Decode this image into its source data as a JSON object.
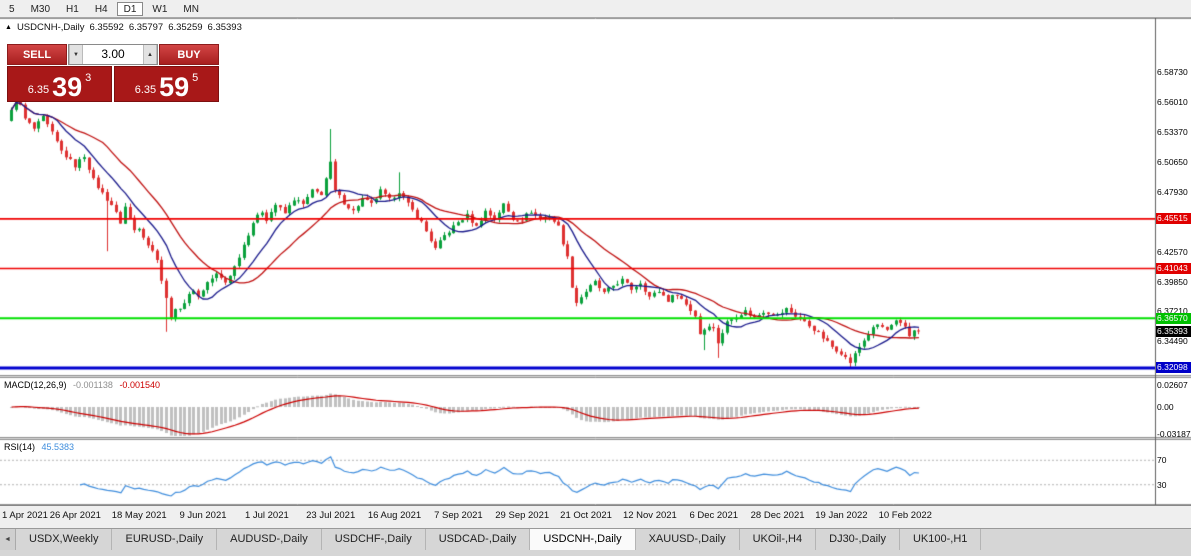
{
  "toolbar": {
    "timeframes": [
      "5",
      "M30",
      "H1",
      "H4",
      "D1",
      "W1",
      "MN"
    ],
    "active": "D1"
  },
  "chart_header": {
    "collapse_icon": "▲",
    "symbol": "USDCNH-,Daily",
    "open": "6.35592",
    "high": "6.35797",
    "low": "6.35259",
    "close": "6.35393"
  },
  "trade": {
    "sell_label": "SELL",
    "buy_label": "BUY",
    "volume": "3.00",
    "spinner_down": "▼",
    "spinner_up": "▲",
    "sell_price": {
      "prefix": "6.35",
      "big": "39",
      "sup": "3"
    },
    "buy_price": {
      "prefix": "6.35",
      "big": "59",
      "sup": "5"
    }
  },
  "macd_label": {
    "name": "MACD(12,26,9)",
    "main": "-0.001138",
    "signal": "-0.001540"
  },
  "rsi_label": {
    "name": "RSI(14)",
    "value": "45.5383"
  },
  "tabs": {
    "scroll_left_icon": "◄",
    "items": [
      "USDX,Weekly",
      "EURUSD-,Daily",
      "AUDUSD-,Daily",
      "USDCHF-,Daily",
      "USDCAD-,Daily",
      "USDCNH-,Daily",
      "XAUUSD-,Daily",
      "UKOil-,H4",
      "DJ30-,Daily",
      "UK100-,H1"
    ],
    "active": "USDCNH-,Daily"
  },
  "chart_data": {
    "type": "candlestick",
    "title": "USDCNH-,Daily",
    "n": 200,
    "last_close": 6.35393,
    "candle_up": "#0aa13c",
    "candle_down": "#de3131",
    "x_axis": {
      "labels": [
        "1 Apr 2021",
        "26 Apr 2021",
        "18 May 2021",
        "9 Jun 2021",
        "1 Jul 2021",
        "23 Jul 2021",
        "16 Aug 2021",
        "7 Sep 2021",
        "29 Sep 2021",
        "21 Oct 2021",
        "12 Nov 2021",
        "6 Dec 2021",
        "28 Dec 2021",
        "19 Jan 2022",
        "10 Feb 2022"
      ],
      "indices": [
        0,
        14,
        28,
        42,
        56,
        70,
        84,
        98,
        112,
        126,
        140,
        154,
        168,
        182,
        196
      ]
    },
    "y_axis": {
      "min": 6.3146,
      "max": 6.6359,
      "plain_labels": [
        {
          "t": "6.58730",
          "p": 6.5873
        },
        {
          "t": "6.56010",
          "p": 6.5601
        },
        {
          "t": "6.53370",
          "p": 6.5337
        },
        {
          "t": "6.50650",
          "p": 6.5065
        },
        {
          "t": "6.47930",
          "p": 6.4793
        },
        {
          "t": "6.42570",
          "p": 6.4257
        },
        {
          "t": "6.39850",
          "p": 6.3985
        },
        {
          "t": "6.37210",
          "p": 6.3721
        },
        {
          "t": "6.34490",
          "p": 6.3449
        }
      ],
      "badges": [
        {
          "t": "6.45515",
          "p": 6.45515,
          "bg": "#e00000"
        },
        {
          "t": "6.41043",
          "p": 6.41043,
          "bg": "#e00000"
        },
        {
          "t": "6.36570",
          "p": 6.3657,
          "bg": "#00c000"
        },
        {
          "t": "6.35393",
          "p": 6.35393,
          "bg": "#000000"
        },
        {
          "t": "6.32098",
          "p": 6.32098,
          "bg": "#0000c8"
        }
      ]
    },
    "levels": [
      {
        "p": 6.45515,
        "color": "#f00000",
        "w": 1.6
      },
      {
        "p": 6.41043,
        "color": "#f00000",
        "w": 1.6
      },
      {
        "p": 6.3657,
        "color": "#00e000",
        "w": 2
      },
      {
        "p": 6.32098,
        "color": "#0000d0",
        "w": 3
      }
    ],
    "mas": [
      {
        "period": 21,
        "color": "#c01010"
      },
      {
        "period": 10,
        "color": "#1a1a8c"
      }
    ],
    "macd": {
      "fast": 12,
      "slow": 26,
      "signal": 9,
      "current_macd": -0.001138,
      "current_signal": -0.00154,
      "hist_color": "#c0c0c0",
      "signal_color": "#cc0000",
      "axis": [
        {
          "t": "0.02607",
          "v": 0.02607
        },
        {
          "t": "0.00",
          "v": 0
        },
        {
          "t": "-0.03187",
          "v": -0.03187
        }
      ]
    },
    "rsi": {
      "period": 14,
      "current": 45.5383,
      "levels": [
        70,
        30
      ],
      "color": "#3e8ddd"
    },
    "close_anchors": [
      [
        0,
        6.552
      ],
      [
        1,
        6.568
      ],
      [
        3,
        6.545
      ],
      [
        5,
        6.536
      ],
      [
        7,
        6.546
      ],
      [
        9,
        6.532
      ],
      [
        11,
        6.516
      ],
      [
        14,
        6.503
      ],
      [
        16,
        6.512
      ],
      [
        18,
        6.49
      ],
      [
        20,
        6.478
      ],
      [
        22,
        6.468
      ],
      [
        24,
        6.452
      ],
      [
        25,
        6.466
      ],
      [
        27,
        6.445
      ],
      [
        28,
        6.448
      ],
      [
        30,
        6.432
      ],
      [
        32,
        6.42
      ],
      [
        33,
        6.4
      ],
      [
        34,
        6.383
      ],
      [
        35,
        6.367
      ],
      [
        36,
        6.372
      ],
      [
        38,
        6.38
      ],
      [
        40,
        6.392
      ],
      [
        41,
        6.385
      ],
      [
        43,
        6.398
      ],
      [
        45,
        6.405
      ],
      [
        47,
        6.398
      ],
      [
        49,
        6.412
      ],
      [
        51,
        6.432
      ],
      [
        53,
        6.452
      ],
      [
        55,
        6.462
      ],
      [
        56,
        6.455
      ],
      [
        58,
        6.468
      ],
      [
        60,
        6.46
      ],
      [
        62,
        6.473
      ],
      [
        64,
        6.468
      ],
      [
        66,
        6.48
      ],
      [
        68,
        6.478
      ],
      [
        70,
        6.505
      ],
      [
        71,
        6.48
      ],
      [
        73,
        6.47
      ],
      [
        75,
        6.462
      ],
      [
        77,
        6.473
      ],
      [
        79,
        6.468
      ],
      [
        81,
        6.48
      ],
      [
        83,
        6.472
      ],
      [
        85,
        6.48
      ],
      [
        87,
        6.468
      ],
      [
        90,
        6.452
      ],
      [
        93,
        6.428
      ],
      [
        95,
        6.44
      ],
      [
        98,
        6.452
      ],
      [
        100,
        6.458
      ],
      [
        102,
        6.448
      ],
      [
        104,
        6.462
      ],
      [
        106,
        6.455
      ],
      [
        108,
        6.468
      ],
      [
        110,
        6.455
      ],
      [
        112,
        6.455
      ],
      [
        114,
        6.462
      ],
      [
        116,
        6.455
      ],
      [
        118,
        6.458
      ],
      [
        120,
        6.448
      ],
      [
        122,
        6.42
      ],
      [
        123,
        6.395
      ],
      [
        124,
        6.38
      ],
      [
        126,
        6.39
      ],
      [
        128,
        6.398
      ],
      [
        130,
        6.388
      ],
      [
        132,
        6.395
      ],
      [
        134,
        6.4
      ],
      [
        136,
        6.392
      ],
      [
        138,
        6.398
      ],
      [
        140,
        6.385
      ],
      [
        142,
        6.39
      ],
      [
        144,
        6.382
      ],
      [
        146,
        6.388
      ],
      [
        148,
        6.378
      ],
      [
        150,
        6.368
      ],
      [
        151,
        6.352
      ],
      [
        153,
        6.36
      ],
      [
        154,
        6.356
      ],
      [
        155,
        6.344
      ],
      [
        157,
        6.362
      ],
      [
        159,
        6.368
      ],
      [
        161,
        6.372
      ],
      [
        163,
        6.366
      ],
      [
        165,
        6.372
      ],
      [
        167,
        6.37
      ],
      [
        168,
        6.368
      ],
      [
        170,
        6.374
      ],
      [
        172,
        6.368
      ],
      [
        174,
        6.362
      ],
      [
        176,
        6.356
      ],
      [
        178,
        6.348
      ],
      [
        180,
        6.34
      ],
      [
        182,
        6.335
      ],
      [
        183,
        6.33
      ],
      [
        184,
        6.326
      ],
      [
        186,
        6.34
      ],
      [
        188,
        6.352
      ],
      [
        190,
        6.36
      ],
      [
        192,
        6.355
      ],
      [
        194,
        6.362
      ],
      [
        196,
        6.358
      ],
      [
        197,
        6.35
      ],
      [
        198,
        6.356
      ],
      [
        199,
        6.35393
      ]
    ],
    "wick_overrides": [
      [
        1,
        "high",
        6.5755
      ],
      [
        21,
        "low",
        6.426
      ],
      [
        34,
        "low",
        6.3535
      ],
      [
        70,
        "high",
        6.536
      ],
      [
        85,
        "high",
        6.497
      ],
      [
        152,
        "low",
        6.337
      ],
      [
        155,
        "low",
        6.33
      ],
      [
        184,
        "low",
        6.3215
      ]
    ]
  }
}
